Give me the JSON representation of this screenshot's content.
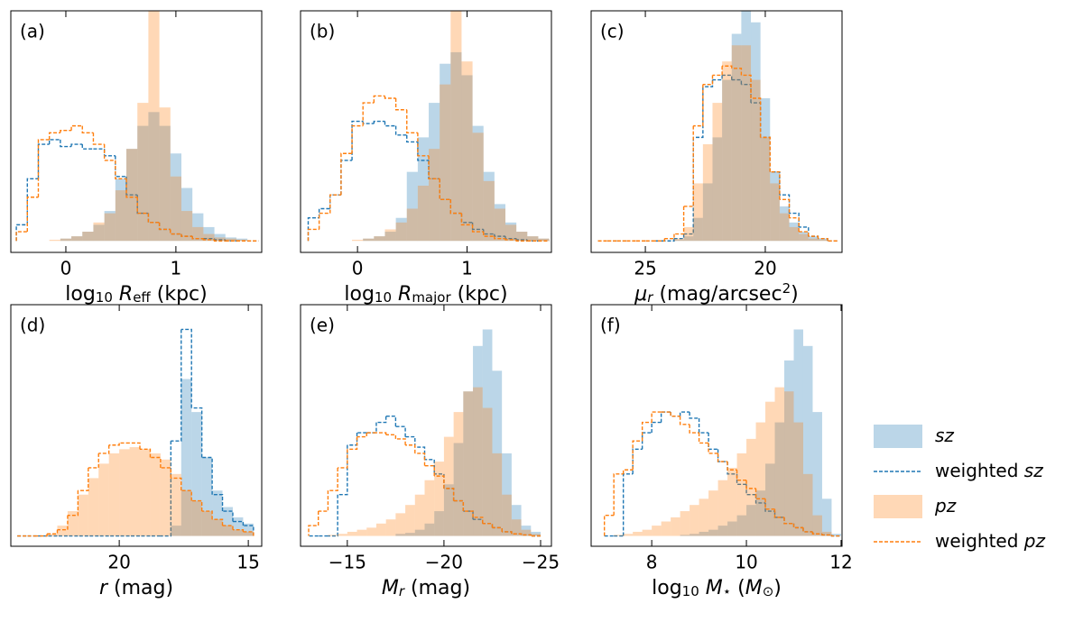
{
  "chart_data": [
    {
      "type": "histogram",
      "label": "(a)",
      "xlabel": {
        "parts": [
          "log",
          "10",
          " ",
          "R",
          "eff",
          " (kpc)"
        ],
        "styles": [
          "normal",
          "sub",
          "normal",
          "italic",
          "sub",
          "normal"
        ]
      },
      "xlim": [
        -0.5,
        1.78
      ],
      "xticks": [
        0,
        1
      ],
      "ylim": [
        -0.05,
        1.0
      ],
      "bins": [
        -0.45,
        -0.35,
        -0.25,
        -0.15,
        -0.05,
        0.05,
        0.15,
        0.25,
        0.35,
        0.45,
        0.55,
        0.65,
        0.75,
        0.85,
        0.95,
        1.05,
        1.15,
        1.25,
        1.35,
        1.45,
        1.55,
        1.65,
        1.75
      ],
      "series": [
        {
          "color": "#1f77b4",
          "style": "filled",
          "alpha": 0.3,
          "values": [
            0,
            0,
            0,
            0,
            0.01,
            0.02,
            0.04,
            0.07,
            0.13,
            0.27,
            0.4,
            0.5,
            0.56,
            0.5,
            0.38,
            0.23,
            0.12,
            0.06,
            0.03,
            0.015,
            0.01,
            0
          ]
        },
        {
          "color": "#1f77b4",
          "style": "dashed",
          "values": [
            0.07,
            0.27,
            0.42,
            0.44,
            0.41,
            0.42,
            0.4,
            0.4,
            0.37,
            0.28,
            0.2,
            0.12,
            0.08,
            0.05,
            0.03,
            0.02,
            0.01,
            0.01,
            0.005,
            0,
            0,
            0
          ]
        },
        {
          "color": "#ff7f0e",
          "style": "filled",
          "alpha": 0.3,
          "values": [
            0,
            0,
            0,
            0.005,
            0.01,
            0.02,
            0.04,
            0.08,
            0.12,
            0.22,
            0.4,
            0.6,
            1.0,
            0.58,
            0.28,
            0.13,
            0.06,
            0.03,
            0.015,
            0.01,
            0.005,
            0
          ]
        },
        {
          "color": "#ff7f0e",
          "style": "dashed",
          "values": [
            0.04,
            0.19,
            0.44,
            0.47,
            0.48,
            0.5,
            0.47,
            0.42,
            0.35,
            0.27,
            0.19,
            0.12,
            0.08,
            0.05,
            0.03,
            0.02,
            0.01,
            0.005,
            0,
            0,
            0,
            0
          ]
        }
      ]
    },
    {
      "type": "histogram",
      "label": "(b)",
      "xlabel": {
        "parts": [
          "log",
          "10",
          " ",
          "R",
          "major",
          " (kpc)"
        ],
        "styles": [
          "normal",
          "sub",
          "normal",
          "italic",
          "sub",
          "normal"
        ]
      },
      "xlim": [
        -0.52,
        1.77
      ],
      "xticks": [
        0,
        1
      ],
      "ylim": [
        -0.05,
        1.0
      ],
      "bins": [
        -0.45,
        -0.35,
        -0.25,
        -0.15,
        -0.05,
        0.05,
        0.15,
        0.25,
        0.35,
        0.45,
        0.55,
        0.65,
        0.75,
        0.85,
        0.95,
        1.05,
        1.15,
        1.25,
        1.35,
        1.45,
        1.55,
        1.65,
        1.75
      ],
      "series": [
        {
          "color": "#1f77b4",
          "style": "filled",
          "alpha": 0.3,
          "values": [
            0,
            0,
            0,
            0,
            0,
            0.01,
            0.02,
            0.04,
            0.1,
            0.3,
            0.45,
            0.6,
            0.77,
            0.82,
            0.72,
            0.5,
            0.3,
            0.16,
            0.08,
            0.04,
            0.02,
            0.01
          ]
        },
        {
          "color": "#1f77b4",
          "style": "dashed",
          "values": [
            0.1,
            0.14,
            0.2,
            0.35,
            0.52,
            0.51,
            0.52,
            0.5,
            0.46,
            0.43,
            0.35,
            0.27,
            0.18,
            0.12,
            0.08,
            0.05,
            0.03,
            0.02,
            0.01,
            0.005,
            0,
            0
          ]
        },
        {
          "color": "#ff7f0e",
          "style": "filled",
          "alpha": 0.3,
          "values": [
            0,
            0,
            0,
            0,
            0.005,
            0.01,
            0.02,
            0.05,
            0.08,
            0.14,
            0.24,
            0.4,
            0.68,
            1.0,
            0.78,
            0.47,
            0.26,
            0.14,
            0.07,
            0.04,
            0.02,
            0.01
          ]
        },
        {
          "color": "#ff7f0e",
          "style": "dashed",
          "values": [
            0.05,
            0.12,
            0.2,
            0.38,
            0.5,
            0.6,
            0.63,
            0.62,
            0.57,
            0.47,
            0.37,
            0.27,
            0.18,
            0.12,
            0.07,
            0.04,
            0.02,
            0.01,
            0.005,
            0,
            0,
            0
          ]
        }
      ]
    },
    {
      "type": "histogram",
      "label": "(c)",
      "xlabel": {
        "parts": [
          "μ",
          "r",
          " (mag/arcsec",
          "2",
          ")"
        ],
        "styles": [
          "italic",
          "sub-italic",
          "normal",
          "sup",
          "normal"
        ]
      },
      "xlim": [
        27.26,
        16.8
      ],
      "xticks": [
        25,
        20
      ],
      "ylim": [
        -0.05,
        1.0
      ],
      "bins": [
        17,
        17.4,
        17.8,
        18.2,
        18.6,
        19,
        19.4,
        19.8,
        20.2,
        20.6,
        21,
        21.4,
        21.8,
        22.2,
        22.6,
        23,
        23.4,
        23.8,
        24.2,
        24.6,
        25,
        25.4,
        25.8,
        26.2,
        26.6,
        27
      ],
      "series": [
        {
          "color": "#1f77b4",
          "style": "filled",
          "alpha": 0.3,
          "values": [
            0,
            0.01,
            0.02,
            0.04,
            0.08,
            0.15,
            0.3,
            0.62,
            0.95,
            1.0,
            0.9,
            0.7,
            0.45,
            0.25,
            0.1,
            0.02,
            0.005,
            0,
            0,
            0,
            0,
            0,
            0,
            0,
            0
          ]
        },
        {
          "color": "#1f77b4",
          "style": "dashed",
          "values": [
            0,
            0.01,
            0.02,
            0.06,
            0.12,
            0.2,
            0.3,
            0.45,
            0.6,
            0.68,
            0.7,
            0.72,
            0.7,
            0.67,
            0.45,
            0.03,
            0.01,
            0,
            0,
            0,
            0,
            0,
            0,
            0,
            0
          ]
        },
        {
          "color": "#ff7f0e",
          "style": "filled",
          "alpha": 0.3,
          "values": [
            0,
            0.005,
            0.01,
            0.03,
            0.06,
            0.12,
            0.25,
            0.45,
            0.7,
            0.85,
            0.85,
            0.78,
            0.6,
            0.42,
            0.25,
            0.06,
            0.01,
            0,
            0,
            0,
            0,
            0,
            0,
            0,
            0
          ]
        },
        {
          "color": "#ff7f0e",
          "style": "dashed",
          "values": [
            0,
            0.01,
            0.02,
            0.04,
            0.1,
            0.18,
            0.3,
            0.45,
            0.62,
            0.72,
            0.75,
            0.76,
            0.72,
            0.68,
            0.5,
            0.15,
            0.03,
            0.01,
            0,
            0,
            0,
            0,
            0,
            0,
            0
          ]
        }
      ]
    },
    {
      "type": "histogram",
      "label": "(d)",
      "xlabel": {
        "parts": [
          "r",
          " (mag)"
        ],
        "styles": [
          "italic",
          "normal"
        ]
      },
      "xlim": [
        24.2,
        14.48
      ],
      "xticks": [
        20,
        15
      ],
      "ylim": [
        -0.05,
        1.12
      ],
      "bins": [
        14.8,
        15.2,
        15.6,
        16,
        16.4,
        16.8,
        17.2,
        17.6,
        18,
        18.4,
        18.8,
        19.2,
        19.6,
        20,
        20.4,
        20.8,
        21.2,
        21.6,
        22,
        22.4,
        22.8,
        23.2,
        23.6,
        24
      ],
      "series": [
        {
          "color": "#1f77b4",
          "style": "filled",
          "alpha": 0.3,
          "values": [
            0.06,
            0.09,
            0.14,
            0.22,
            0.38,
            0.6,
            0.76,
            0.05,
            0,
            0,
            0,
            0,
            0,
            0,
            0,
            0,
            0,
            0,
            0,
            0,
            0,
            0,
            0
          ]
        },
        {
          "color": "#1f77b4",
          "style": "dashed",
          "values": [
            0.05,
            0.07,
            0.12,
            0.2,
            0.38,
            0.62,
            1.0,
            0.46,
            0,
            0,
            0,
            0,
            0,
            0,
            0,
            0,
            0,
            0,
            0,
            0,
            0,
            0,
            0
          ]
        },
        {
          "color": "#ff7f0e",
          "style": "filled",
          "alpha": 0.3,
          "values": [
            0.02,
            0.03,
            0.05,
            0.08,
            0.12,
            0.17,
            0.22,
            0.3,
            0.37,
            0.4,
            0.42,
            0.43,
            0.42,
            0.4,
            0.35,
            0.28,
            0.2,
            0.12,
            0.05,
            0.01,
            0,
            0,
            0
          ]
        },
        {
          "color": "#ff7f0e",
          "style": "dashed",
          "values": [
            0.02,
            0.03,
            0.05,
            0.08,
            0.12,
            0.17,
            0.22,
            0.28,
            0.33,
            0.38,
            0.42,
            0.45,
            0.45,
            0.44,
            0.4,
            0.33,
            0.22,
            0.1,
            0.03,
            0.01,
            0,
            0,
            0
          ]
        }
      ]
    },
    {
      "type": "histogram",
      "label": "(e)",
      "xlabel": {
        "parts": [
          "M",
          "r",
          " (mag)"
        ],
        "styles": [
          "italic",
          "sub-italic",
          "normal"
        ]
      },
      "xlim": [
        -12.58,
        -25.56
      ],
      "xticks": [
        {
          "value": -15,
          "label": "−15"
        },
        {
          "value": -20,
          "label": "−20"
        },
        {
          "value": -25,
          "label": "−25"
        }
      ],
      "ylim": [
        -0.05,
        1.12
      ],
      "bins": [
        -25,
        -24.5,
        -24,
        -23.5,
        -23,
        -22.5,
        -22,
        -21.5,
        -21,
        -20.5,
        -20,
        -19.5,
        -19,
        -18.5,
        -18,
        -17.5,
        -17,
        -16.5,
        -16,
        -15.5,
        -15,
        -14.5,
        -14,
        -13.5,
        -13
      ],
      "series": [
        {
          "color": "#1f77b4",
          "style": "filled",
          "alpha": 0.3,
          "values": [
            0.02,
            0.05,
            0.15,
            0.4,
            0.8,
            1.0,
            0.92,
            0.7,
            0.45,
            0.25,
            0.12,
            0.06,
            0.03,
            0.015,
            0.01,
            0,
            0,
            0,
            0,
            0,
            0,
            0,
            0,
            0
          ]
        },
        {
          "color": "#1f77b4",
          "style": "dashed",
          "values": [
            0,
            0.005,
            0.01,
            0.02,
            0.04,
            0.06,
            0.08,
            0.12,
            0.17,
            0.23,
            0.3,
            0.37,
            0.43,
            0.48,
            0.53,
            0.58,
            0.55,
            0.5,
            0.5,
            0.44,
            0.2,
            0,
            0,
            0
          ]
        },
        {
          "color": "#ff7f0e",
          "style": "filled",
          "alpha": 0.3,
          "values": [
            0.01,
            0.03,
            0.08,
            0.2,
            0.4,
            0.62,
            0.72,
            0.7,
            0.6,
            0.48,
            0.36,
            0.27,
            0.2,
            0.15,
            0.11,
            0.08,
            0.06,
            0.04,
            0.03,
            0.02,
            0.01,
            0.005,
            0,
            0
          ]
        },
        {
          "color": "#ff7f0e",
          "style": "dashed",
          "values": [
            0,
            0.005,
            0.01,
            0.02,
            0.04,
            0.06,
            0.09,
            0.12,
            0.17,
            0.23,
            0.29,
            0.34,
            0.4,
            0.44,
            0.47,
            0.49,
            0.5,
            0.5,
            0.48,
            0.42,
            0.33,
            0.22,
            0.12,
            0.05
          ]
        }
      ]
    },
    {
      "type": "histogram",
      "label": "(f)",
      "xlabel": {
        "parts": [
          "log",
          "10",
          " ",
          "M",
          "⋆",
          " (",
          "M",
          "⊙",
          ")"
        ],
        "styles": [
          "normal",
          "sub",
          "normal",
          "italic",
          "sub",
          "normal",
          "italic",
          "sub",
          "normal"
        ]
      },
      "xlim": [
        6.72,
        12.02
      ],
      "xticks": [
        8,
        10,
        12
      ],
      "ylim": [
        -0.05,
        1.12
      ],
      "bins": [
        7,
        7.2,
        7.4,
        7.6,
        7.8,
        8,
        8.2,
        8.4,
        8.6,
        8.8,
        9,
        9.2,
        9.4,
        9.6,
        9.8,
        10,
        10.2,
        10.4,
        10.6,
        10.8,
        11,
        11.2,
        11.4,
        11.6,
        11.8,
        12
      ],
      "series": [
        {
          "name": "sz",
          "color": "#1f77b4",
          "style": "filled",
          "alpha": 0.3,
          "values": [
            0,
            0,
            0,
            0,
            0,
            0,
            0,
            0,
            0.005,
            0.01,
            0.02,
            0.03,
            0.05,
            0.07,
            0.1,
            0.15,
            0.22,
            0.35,
            0.55,
            0.85,
            1.0,
            0.92,
            0.6,
            0.18,
            0.01
          ]
        },
        {
          "name": "weighted sz",
          "color": "#1f77b4",
          "style": "dashed",
          "values": [
            0,
            0,
            0.3,
            0.42,
            0.5,
            0.55,
            0.6,
            0.58,
            0.6,
            0.57,
            0.5,
            0.42,
            0.36,
            0.3,
            0.25,
            0.2,
            0.16,
            0.12,
            0.09,
            0.06,
            0.04,
            0.02,
            0.01,
            0.005,
            0
          ]
        },
        {
          "name": "pz",
          "color": "#ff7f0e",
          "style": "filled",
          "alpha": 0.3,
          "values": [
            0,
            0.005,
            0.01,
            0.02,
            0.03,
            0.05,
            0.07,
            0.09,
            0.12,
            0.15,
            0.18,
            0.22,
            0.27,
            0.33,
            0.4,
            0.47,
            0.55,
            0.65,
            0.72,
            0.7,
            0.55,
            0.3,
            0.1,
            0.02,
            0
          ]
        },
        {
          "name": "weighted pz",
          "color": "#ff7f0e",
          "style": "dashed",
          "values": [
            0.1,
            0.3,
            0.32,
            0.46,
            0.55,
            0.6,
            0.6,
            0.58,
            0.54,
            0.5,
            0.45,
            0.4,
            0.36,
            0.32,
            0.27,
            0.23,
            0.18,
            0.13,
            0.09,
            0.06,
            0.04,
            0.02,
            0.01,
            0.005,
            0
          ]
        }
      ]
    }
  ]
}
